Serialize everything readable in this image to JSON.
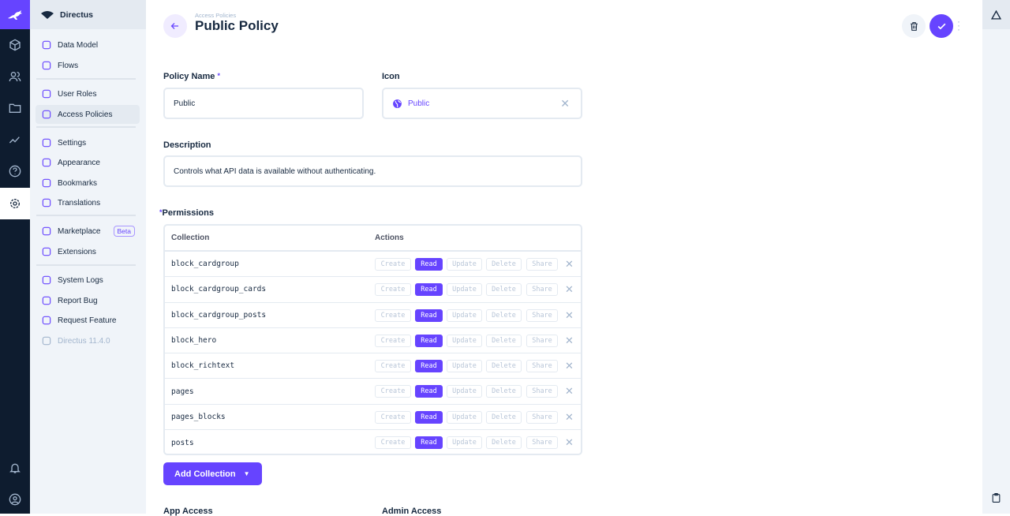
{
  "sidebar": {
    "project": "Directus",
    "items": [
      {
        "label": "Data Model",
        "icon": "database-icon"
      },
      {
        "label": "Flows",
        "icon": "bolt-icon"
      },
      {
        "label": "User Roles",
        "icon": "users-icon"
      },
      {
        "label": "Access Policies",
        "icon": "shield-lock-icon",
        "active": true
      },
      {
        "label": "Settings",
        "icon": "tune-icon"
      },
      {
        "label": "Appearance",
        "icon": "palette-icon"
      },
      {
        "label": "Bookmarks",
        "icon": "bookmark-icon"
      },
      {
        "label": "Translations",
        "icon": "translate-icon"
      },
      {
        "label": "Marketplace",
        "icon": "store-icon",
        "badge": "Beta"
      },
      {
        "label": "Extensions",
        "icon": "shapes-icon"
      },
      {
        "label": "System Logs",
        "icon": "terminal-icon"
      },
      {
        "label": "Report Bug",
        "icon": "bug-icon"
      },
      {
        "label": "Request Feature",
        "icon": "verified-icon"
      },
      {
        "label": "Directus 11.4.0",
        "icon": "directus-icon"
      }
    ]
  },
  "header": {
    "breadcrumb": "Access Policies",
    "title": "Public Policy"
  },
  "form": {
    "policy_name": {
      "label": "Policy Name",
      "value": "Public"
    },
    "icon": {
      "label": "Icon",
      "value": "Public",
      "icon": "globe-icon"
    },
    "description": {
      "label": "Description",
      "value": "Controls what API data is available without authenticating."
    },
    "permissions": {
      "label": "Permissions",
      "col_collection": "Collection",
      "col_actions": "Actions",
      "action_labels": [
        "Create",
        "Read",
        "Update",
        "Delete",
        "Share"
      ],
      "rows": [
        {
          "collection": "block_cardgroup",
          "enabled": [
            "Read"
          ]
        },
        {
          "collection": "block_cardgroup_cards",
          "enabled": [
            "Read"
          ]
        },
        {
          "collection": "block_cardgroup_posts",
          "enabled": [
            "Read"
          ]
        },
        {
          "collection": "block_hero",
          "enabled": [
            "Read"
          ]
        },
        {
          "collection": "block_richtext",
          "enabled": [
            "Read"
          ]
        },
        {
          "collection": "pages",
          "enabled": [
            "Read"
          ]
        },
        {
          "collection": "pages_blocks",
          "enabled": [
            "Read"
          ]
        },
        {
          "collection": "posts",
          "enabled": [
            "Read"
          ]
        }
      ]
    },
    "add_collection": "Add Collection",
    "app_access": "App Access",
    "admin_access": "Admin Access"
  },
  "colors": {
    "accent": "#6644ff",
    "rail": "#0e1c2f"
  }
}
